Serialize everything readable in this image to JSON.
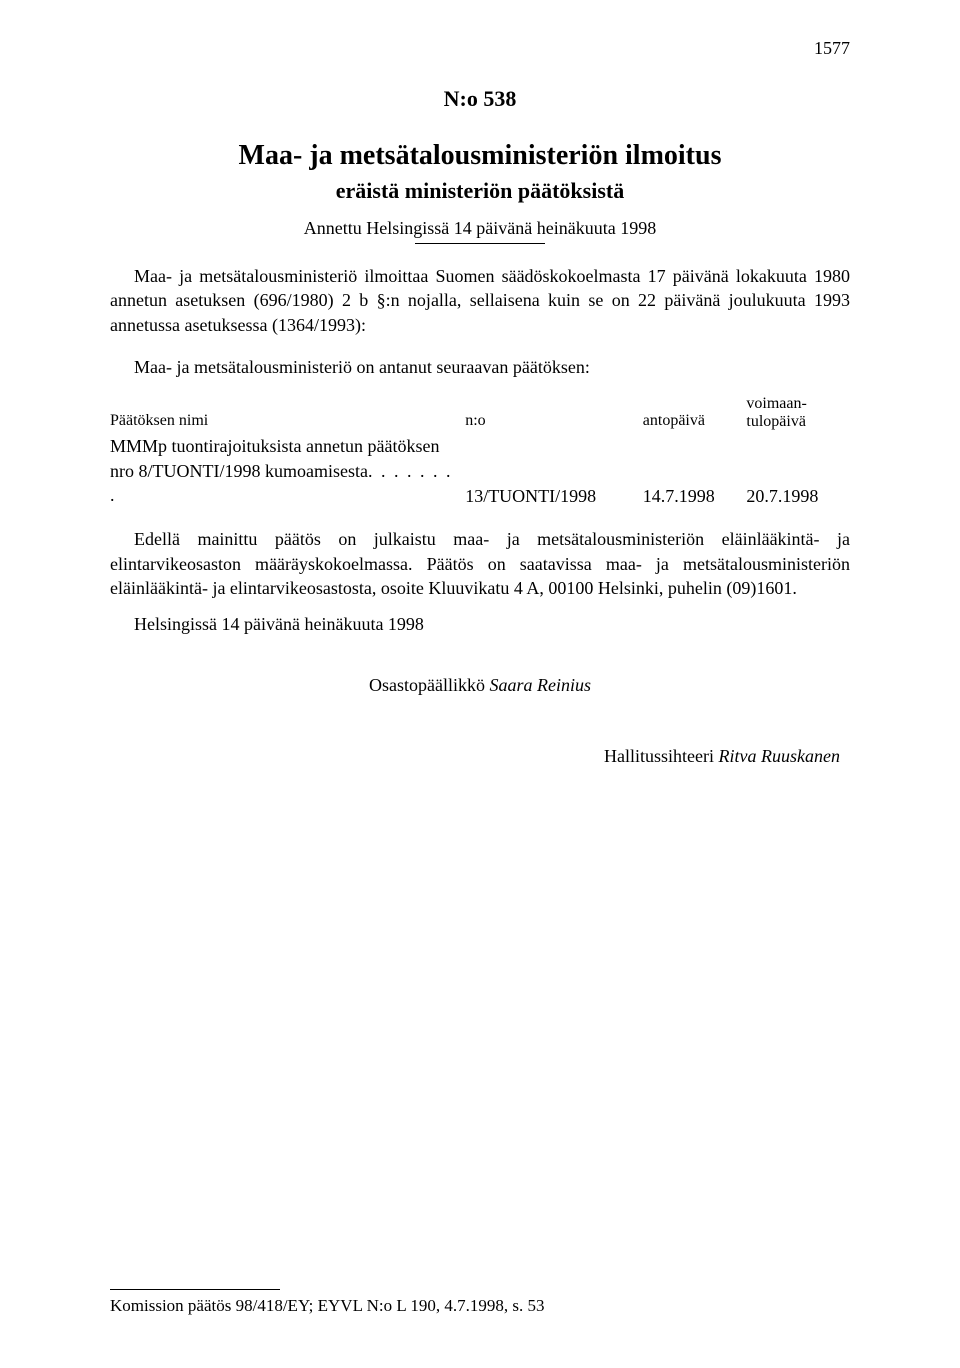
{
  "page_number": "1577",
  "doc_number": "N:o 538",
  "title": "Maa- ja metsätalousministeriön ilmoitus",
  "subtitle": "eräistä ministeriön päätöksistä",
  "given": "Annettu Helsingissä 14 päivänä heinäkuuta 1998",
  "intro": "Maa- ja metsätalousministeriö ilmoittaa Suomen säädöskokoelmasta 17 päivänä lokakuuta 1980 annetun asetuksen (696/1980) 2 b §:n nojalla, sellaisena kuin se on 22 päivänä joulukuuta 1993 annetussa asetuksessa (1364/1993):",
  "lead": "Maa- ja metsätalousministeriö on antanut seuraavan päätöksen:",
  "table": {
    "headers": {
      "name": "Päätöksen nimi",
      "no": "n:o",
      "anto": "antopäivä",
      "voimaan_line1": "voimaan-",
      "voimaan_line2": "tulopäivä"
    },
    "row": {
      "name_line1": "MMMp tuontirajoituksista annetun päätöksen",
      "name_line2_prefix": "nro 8/TUONTI/1998 kumoamisesta",
      "dots": ". . . . . . . .",
      "no": "13/TUONTI/1998",
      "anto": "14.7.1998",
      "voimaan": "20.7.1998"
    }
  },
  "body2": "Edellä mainittu päätös on julkaistu maa- ja metsätalousministeriön eläinlääkintä- ja elintarvikeosaston määräyskokoelmassa. Päätös on saatavissa maa- ja metsätalousministeriön eläinlääkintä- ja elintarvikeosastosta, osoite Kluuvikatu 4 A, 00100 Helsinki, puhelin (09)1601.",
  "signed_place": "Helsingissä 14 päivänä heinäkuuta 1998",
  "sig1_title": "Osastopäällikkö ",
  "sig1_name": "Saara Reinius",
  "sig2_title": "Hallitussihteeri ",
  "sig2_name": "Ritva Ruuskanen",
  "footnote": "Komission päätös 98/418/EY; EYVL N:o L 190, 4.7.1998, s. 53"
}
